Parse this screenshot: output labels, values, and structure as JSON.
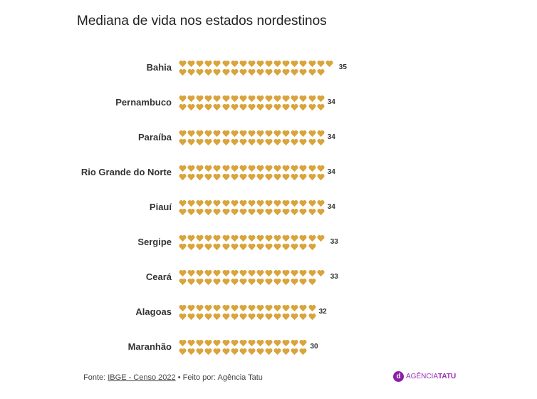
{
  "title": "Mediana de vida nos estados nordestinos",
  "chart_data": {
    "type": "pictogram",
    "title": "Mediana de vida nos estados nordestinos",
    "icon": "heart-icon",
    "color": "#d9a43c",
    "categories": [
      "Bahia",
      "Pernambuco",
      "Paraíba",
      "Rio Grande do Norte",
      "Piauí",
      "Sergipe",
      "Ceará",
      "Alagoas",
      "Maranhão"
    ],
    "values": [
      35,
      34,
      34,
      34,
      34,
      33,
      33,
      32,
      30
    ]
  },
  "footer": {
    "source_prefix": "Fonte: ",
    "source_link": "IBGE - Censo 2022",
    "made_by": " • Feito por: Agência Tatu"
  },
  "logo": {
    "text_a": "AGÊNCIA",
    "text_b": "TATU"
  }
}
